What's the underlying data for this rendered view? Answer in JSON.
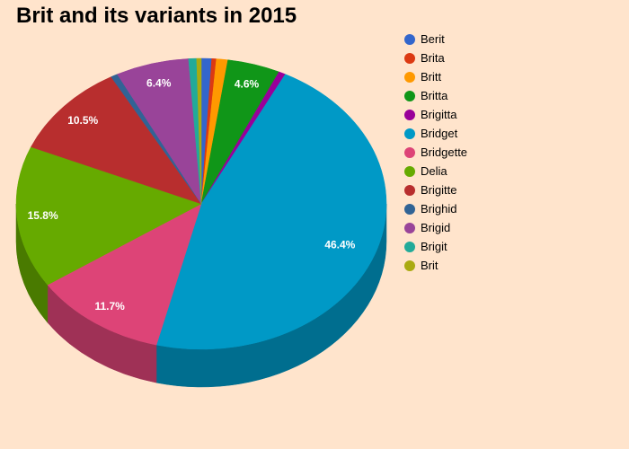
{
  "chart_data": {
    "type": "pie",
    "title": "Brit and its variants in 2015",
    "legend_position": "right",
    "three_d": true,
    "slices": [
      {
        "name": "Berit",
        "value": 0.9,
        "color": "#3366cc",
        "label": ""
      },
      {
        "name": "Brita",
        "value": 0.4,
        "color": "#dc3912",
        "label": ""
      },
      {
        "name": "Britt",
        "value": 1.0,
        "color": "#ff9900",
        "label": ""
      },
      {
        "name": "Britta",
        "value": 4.6,
        "color": "#109618",
        "label": "4.6%"
      },
      {
        "name": "Brigitta",
        "value": 0.6,
        "color": "#990099",
        "label": ""
      },
      {
        "name": "Bridget",
        "value": 46.4,
        "color": "#0099c6",
        "label": "46.4%"
      },
      {
        "name": "Bridgette",
        "value": 11.7,
        "color": "#dd4477",
        "label": "11.7%"
      },
      {
        "name": "Delia",
        "value": 15.8,
        "color": "#66aa00",
        "label": "15.8%"
      },
      {
        "name": "Brigitte",
        "value": 10.5,
        "color": "#b82e2e",
        "label": "10.5%"
      },
      {
        "name": "Brighid",
        "value": 0.6,
        "color": "#316395",
        "label": ""
      },
      {
        "name": "Brigid",
        "value": 6.4,
        "color": "#994499",
        "label": "6.4%"
      },
      {
        "name": "Brigit",
        "value": 0.7,
        "color": "#22aa99",
        "label": ""
      },
      {
        "name": "Brit",
        "value": 0.4,
        "color": "#aaaa11",
        "label": ""
      }
    ]
  }
}
